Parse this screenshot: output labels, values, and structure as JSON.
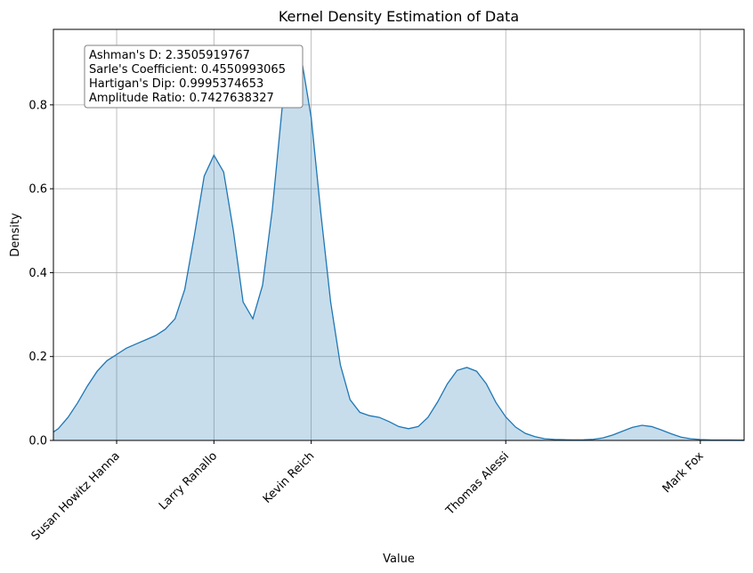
{
  "chart_data": {
    "type": "area",
    "title": "Kernel Density Estimation of Data",
    "xlabel": "Value",
    "ylabel": "Density",
    "xlim": [
      0.35,
      7.45
    ],
    "ylim": [
      0,
      0.98
    ],
    "grid": true,
    "line_color": "#1f77b4",
    "fill_color": "#1f77b4",
    "fill_opacity": 0.25,
    "x_ticks": [
      {
        "value": 1,
        "label": "Susan Howitz Hanna"
      },
      {
        "value": 2,
        "label": "Larry Ranallo"
      },
      {
        "value": 3,
        "label": "Kevin Reich"
      },
      {
        "value": 5,
        "label": "Thomas Alessi"
      },
      {
        "value": 7,
        "label": "Mark Fox"
      }
    ],
    "x_tick_rotation": 45,
    "y_ticks": [
      {
        "value": 0,
        "label": "0.0"
      },
      {
        "value": 0.2,
        "label": "0.2"
      },
      {
        "value": 0.4,
        "label": "0.4"
      },
      {
        "value": 0.6,
        "label": "0.6"
      },
      {
        "value": 0.8,
        "label": "0.8"
      }
    ],
    "series": [
      {
        "x": [
          0.05,
          0.1,
          0.2,
          0.3,
          0.4,
          0.5,
          0.6,
          0.7,
          0.8,
          0.9,
          1.0,
          1.1,
          1.2,
          1.3,
          1.4,
          1.5,
          1.6,
          1.7,
          1.8,
          1.9,
          2.0,
          2.1,
          2.2,
          2.3,
          2.4,
          2.5,
          2.6,
          2.7,
          2.8,
          2.9,
          3.0,
          3.1,
          3.2,
          3.3,
          3.4,
          3.5,
          3.6,
          3.7,
          3.8,
          3.9,
          4.0,
          4.1,
          4.2,
          4.3,
          4.4,
          4.5,
          4.6,
          4.7,
          4.8,
          4.9,
          5.0,
          5.1,
          5.2,
          5.3,
          5.4,
          5.5,
          5.6,
          5.7,
          5.8,
          5.9,
          6.0,
          6.1,
          6.2,
          6.3,
          6.4,
          6.5,
          6.6,
          6.7,
          6.8,
          6.9,
          7.0,
          7.1,
          7.2,
          7.3,
          7.4,
          7.5,
          7.6,
          7.7,
          7.75
        ],
        "y": [
          0.0016,
          0.002,
          0.005,
          0.012,
          0.028,
          0.055,
          0.09,
          0.13,
          0.165,
          0.19,
          0.205,
          0.22,
          0.23,
          0.24,
          0.25,
          0.265,
          0.29,
          0.36,
          0.49,
          0.63,
          0.68,
          0.64,
          0.5,
          0.33,
          0.29,
          0.37,
          0.55,
          0.79,
          0.93,
          0.91,
          0.77,
          0.54,
          0.33,
          0.18,
          0.097,
          0.067,
          0.059,
          0.055,
          0.045,
          0.033,
          0.028,
          0.033,
          0.055,
          0.092,
          0.135,
          0.167,
          0.174,
          0.165,
          0.135,
          0.09,
          0.056,
          0.032,
          0.017,
          0.009,
          0.004,
          0.0024,
          0.0017,
          0.0014,
          0.0016,
          0.0026,
          0.006,
          0.013,
          0.022,
          0.031,
          0.036,
          0.033,
          0.025,
          0.016,
          0.008,
          0.004,
          0.0021,
          0.0013,
          0.0011,
          0.0009,
          0.0008,
          0.0007,
          0.0006,
          0.0005,
          0.0004
        ]
      }
    ]
  },
  "stats_box": {
    "lines": [
      "Ashman's D: 2.3505919767",
      "Sarle's Coefficient: 0.4550993065",
      "Hartigan's Dip: 0.9995374653",
      "Amplitude Ratio: 0.7427638327"
    ]
  }
}
